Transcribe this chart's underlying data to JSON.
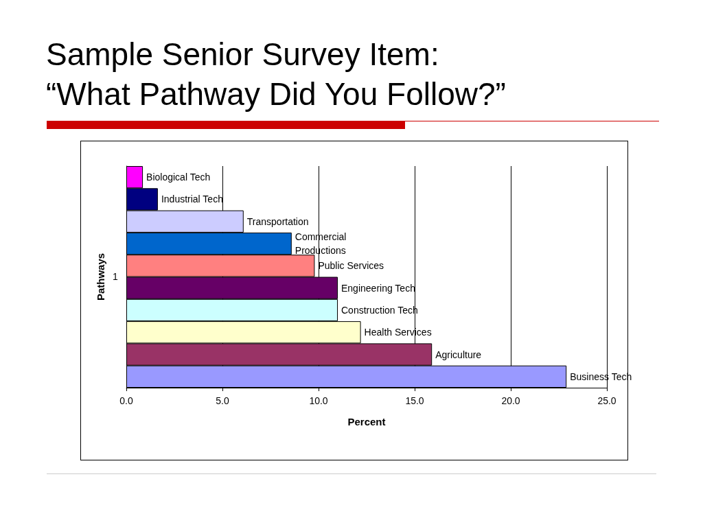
{
  "chart_data": {
    "type": "bar",
    "orientation": "horizontal",
    "title": "Sample Senior Survey Item:\n“What Pathway Did You Follow?”",
    "xlabel": "Percent",
    "ylabel": "Pathways",
    "annotations": [
      "1"
    ],
    "categories": [
      "Biological Tech",
      "Industrial Tech",
      "Transportation",
      "Commercial Productions",
      "Public Services",
      "Engineering Tech",
      "Construction Tech",
      "Health Services",
      "Agriculture",
      "Business Tech"
    ],
    "values": [
      0.86,
      1.64,
      6.1,
      8.6,
      9.8,
      11.0,
      11.0,
      12.2,
      15.9,
      22.9
    ],
    "colors": [
      "#ff00ff",
      "#000080",
      "#ccccff",
      "#0066cc",
      "#ff8080",
      "#660066",
      "#ccffff",
      "#ffffcc",
      "#993366",
      "#9999ff"
    ],
    "xlim": [
      0,
      25
    ],
    "xticks": [
      {
        "value": 0,
        "label": "0.0"
      },
      {
        "value": 5,
        "label": "5.0"
      },
      {
        "value": 10,
        "label": "10.0"
      },
      {
        "value": 15,
        "label": "15.0"
      },
      {
        "value": 20,
        "label": "20.0"
      },
      {
        "value": 25,
        "label": "25.0"
      }
    ],
    "grid": "x"
  }
}
